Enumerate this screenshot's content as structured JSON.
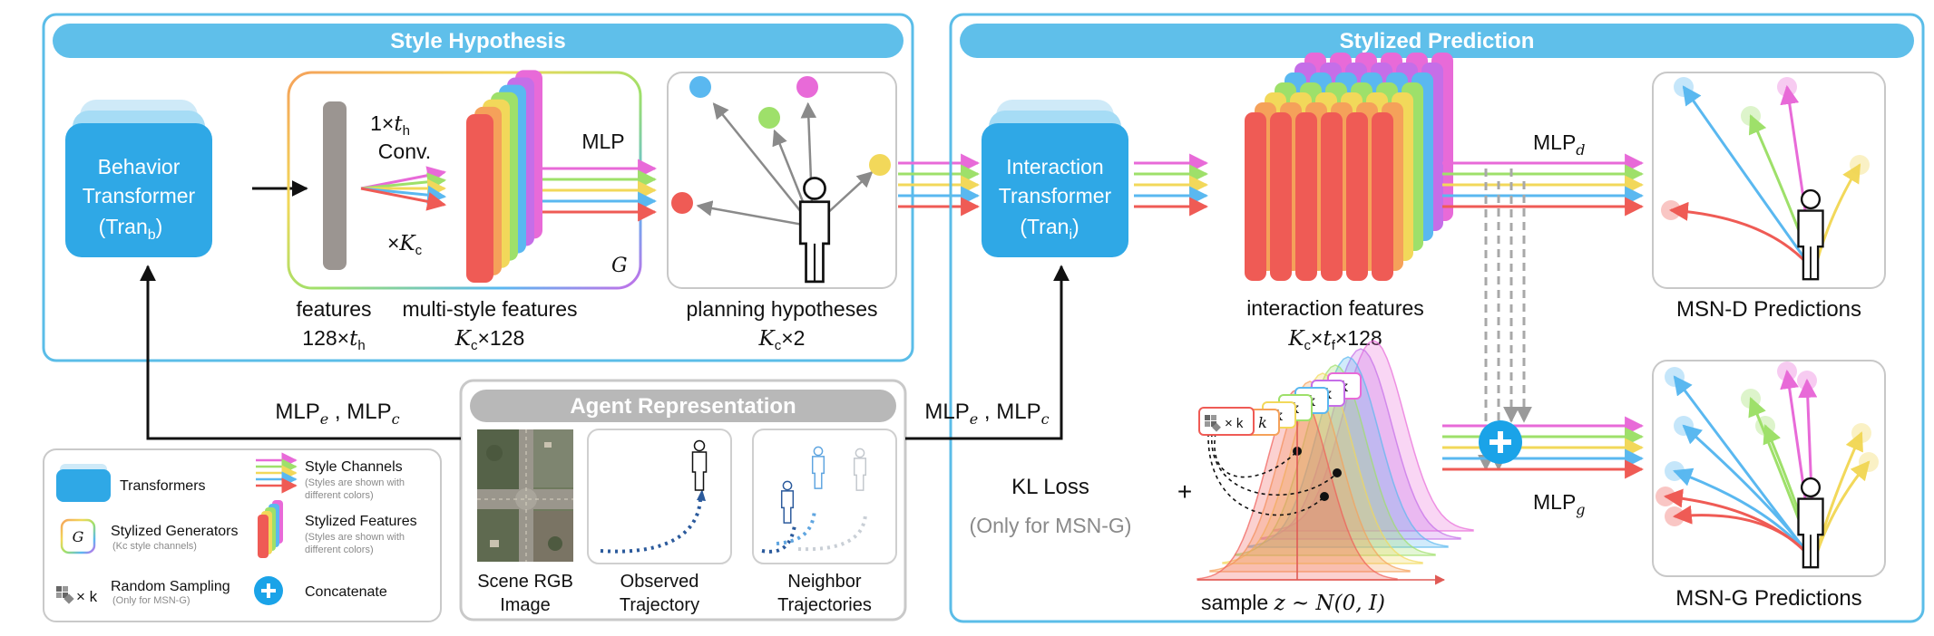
{
  "colors": {
    "panel_border": "#5bbde8",
    "banner": "#5fbfea",
    "transformer": "#2fa8e6",
    "transformer_back": "#a6dcf5",
    "gray_banner": "#b8b8b8",
    "style_channels": [
      "#ef5b55",
      "#f5a15a",
      "#f2d85a",
      "#9ee06a",
      "#5ab8f0",
      "#c56ee8",
      "#e86ad8"
    ]
  },
  "style_hypothesis": {
    "banner": "Style Hypothesis",
    "behavior_transformer": {
      "line1": "Behavior",
      "line2": "Transformer",
      "line3": "(Tran",
      "sub": "b",
      "close": ")"
    },
    "conv_label": {
      "line1": "1×",
      "var": "t",
      "sub": "h",
      "line2": "Conv."
    },
    "times_kc": {
      "prefix": "×",
      "var": "K",
      "sub": "c"
    },
    "mlp_label": "MLP",
    "generator_symbol": "G",
    "features_label": {
      "line1": "features",
      "line2": "128×",
      "var": "t",
      "sub": "h"
    },
    "multi_style_label": {
      "line1": "multi-style features",
      "var": "K",
      "sub": "c",
      "suffix": "×128"
    },
    "planning_label": {
      "line1": "planning hypotheses",
      "var": "K",
      "sub": "c",
      "suffix": "×2"
    }
  },
  "stylized_prediction": {
    "banner": "Stylized Prediction",
    "interaction_transformer": {
      "line1": "Interaction",
      "line2": "Transformer",
      "line3": "(Tran",
      "sub": "i",
      "close": ")"
    },
    "interaction_label": {
      "line1": "interaction features",
      "var1": "K",
      "sub1": "c",
      "mid": "×",
      "var2": "t",
      "sub2": "f",
      "suffix": "×128"
    },
    "mlp_d": {
      "text": "MLP",
      "sub": "d"
    },
    "mlp_g": {
      "text": "MLP",
      "sub": "g"
    },
    "msn_d_label": "MSN-D Predictions",
    "msn_g_label": "MSN-G Predictions",
    "kl_loss": "KL Loss",
    "kl_note": "(Only for MSN-G)",
    "plus_sign": "+",
    "sample_label": {
      "prefix": "sample ",
      "formula": "z ~ N(0, I)"
    },
    "k_label": "k",
    "times_k": "× k"
  },
  "agent_representation": {
    "banner": "Agent Representation",
    "items": [
      {
        "line1": "Scene RGB",
        "line2": "Image"
      },
      {
        "line1": "Observed",
        "line2": "Trajectory"
      },
      {
        "line1": "Neighbor",
        "line2": "Trajectories"
      }
    ],
    "mlp_left": {
      "a": "MLP",
      "asub": "e",
      "sep": " , ",
      "b": "MLP",
      "bsub": "c"
    },
    "mlp_right": {
      "a": "MLP",
      "asub": "e",
      "sep": " , ",
      "b": "MLP",
      "bsub": "c"
    }
  },
  "legend": {
    "items": [
      {
        "label": "Transformers"
      },
      {
        "label": "Style Channels",
        "note1": "(Styles are shown with",
        "note2": "different colors)"
      },
      {
        "label": "Stylized Generators",
        "note1": "(Kc style channels)"
      },
      {
        "label": "Stylized Features",
        "note1": "(Styles are shown with",
        "note2": "different colors)"
      },
      {
        "label": "Random Sampling",
        "note1": "(Only for MSN-G)"
      },
      {
        "label": "Concatenate"
      }
    ],
    "generator_symbol": "G",
    "times_k": "× k",
    "plus": "+"
  }
}
